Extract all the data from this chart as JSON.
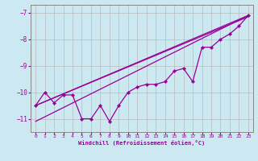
{
  "xlabel": "Windchill (Refroidissement éolien,°C)",
  "xlim": [
    -0.5,
    23.5
  ],
  "ylim": [
    -11.5,
    -6.7
  ],
  "yticks": [
    -11,
    -10,
    -9,
    -8,
    -7
  ],
  "xticks": [
    0,
    1,
    2,
    3,
    4,
    5,
    6,
    7,
    8,
    9,
    10,
    11,
    12,
    13,
    14,
    15,
    16,
    17,
    18,
    19,
    20,
    21,
    22,
    23
  ],
  "background_color": "#cce8f0",
  "grid_color": "#bbbbbb",
  "line_color": "#990099",
  "main_line": {
    "x": [
      0,
      1,
      2,
      3,
      4,
      5,
      6,
      7,
      8,
      9,
      10,
      11,
      12,
      13,
      14,
      15,
      16,
      17,
      18,
      19,
      20,
      21,
      22,
      23
    ],
    "y": [
      -10.5,
      -10.0,
      -10.4,
      -10.1,
      -10.1,
      -11.0,
      -11.0,
      -10.5,
      -11.1,
      -10.5,
      -10.0,
      -9.8,
      -9.7,
      -9.7,
      -9.6,
      -9.2,
      -9.1,
      -9.6,
      -8.3,
      -8.3,
      -8.0,
      -7.8,
      -7.5,
      -7.1
    ]
  },
  "straight_line1": {
    "x": [
      0,
      23
    ],
    "y": [
      -10.5,
      -7.1
    ]
  },
  "straight_line2": {
    "x": [
      0,
      23
    ],
    "y": [
      -10.55,
      -7.15
    ]
  },
  "straight_line3": {
    "x": [
      0,
      23
    ],
    "y": [
      -10.5,
      -7.1
    ]
  },
  "triangle_line": {
    "x": [
      0,
      23
    ],
    "y": [
      -11.1,
      -7.1
    ]
  }
}
